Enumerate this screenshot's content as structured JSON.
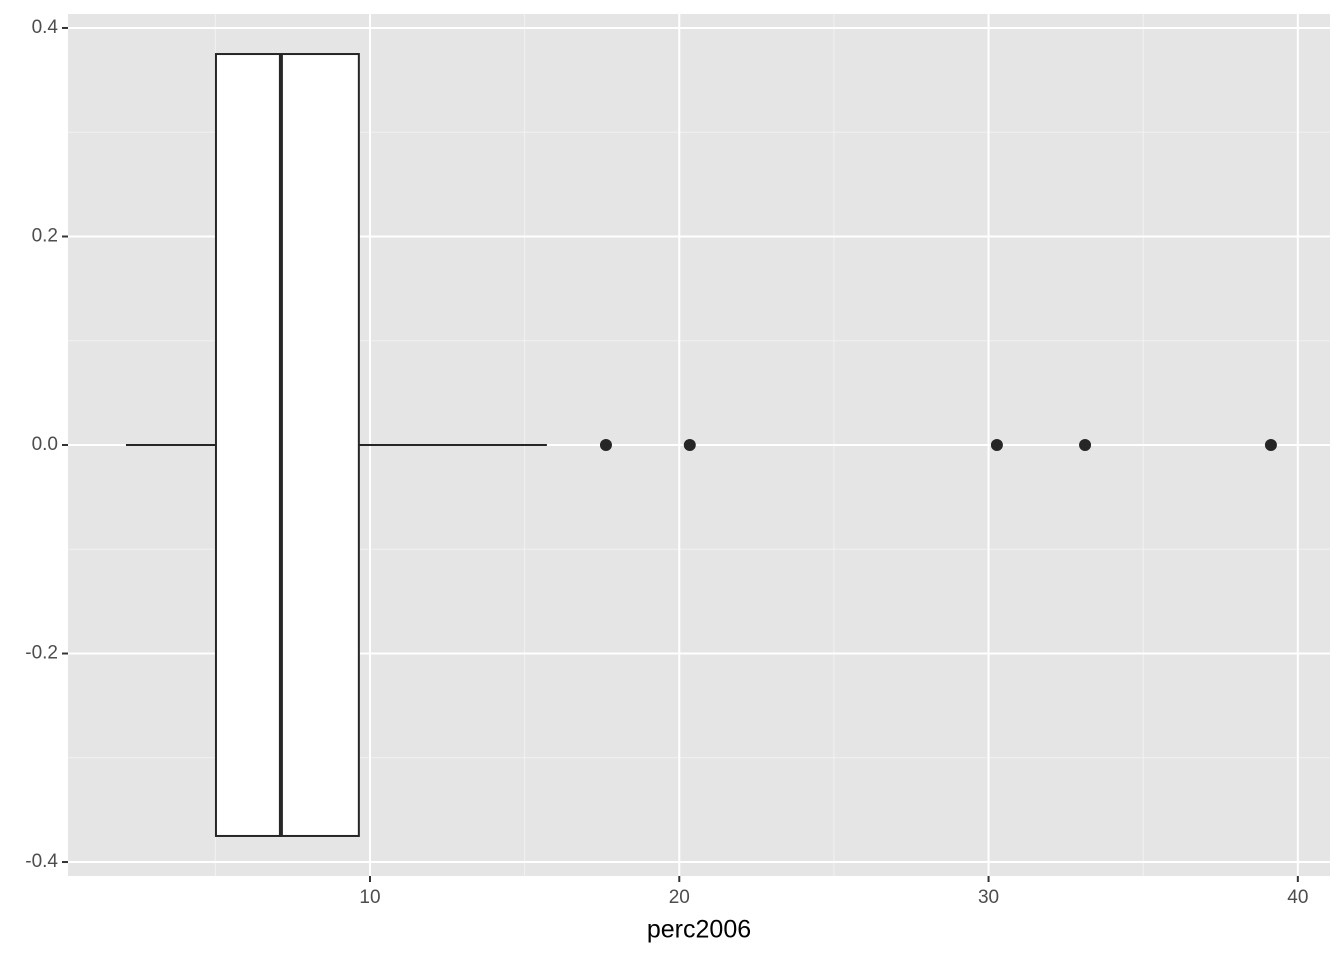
{
  "chart_data": {
    "type": "boxplot",
    "orientation": "horizontal",
    "x_label": "perc2006",
    "box": {
      "whisker_low": 2.11,
      "q1": 5.02,
      "median": 7.12,
      "q3": 9.64,
      "whisker_high": 15.72
    },
    "outliers": [
      17.63,
      20.34,
      30.27,
      33.12,
      39.13
    ],
    "box_width": 0.75,
    "xlim": [
      0.236,
      41.04
    ],
    "xticks": [
      10,
      20,
      30,
      40
    ],
    "ylim": [
      -0.4134,
      0.4134
    ],
    "yticks": [
      0.4,
      0.2,
      {
        "value": 0,
        "label": "0.0"
      },
      -0.2,
      -0.4
    ],
    "grid": true,
    "color": "#262626",
    "box_fill": "#ffffff"
  }
}
